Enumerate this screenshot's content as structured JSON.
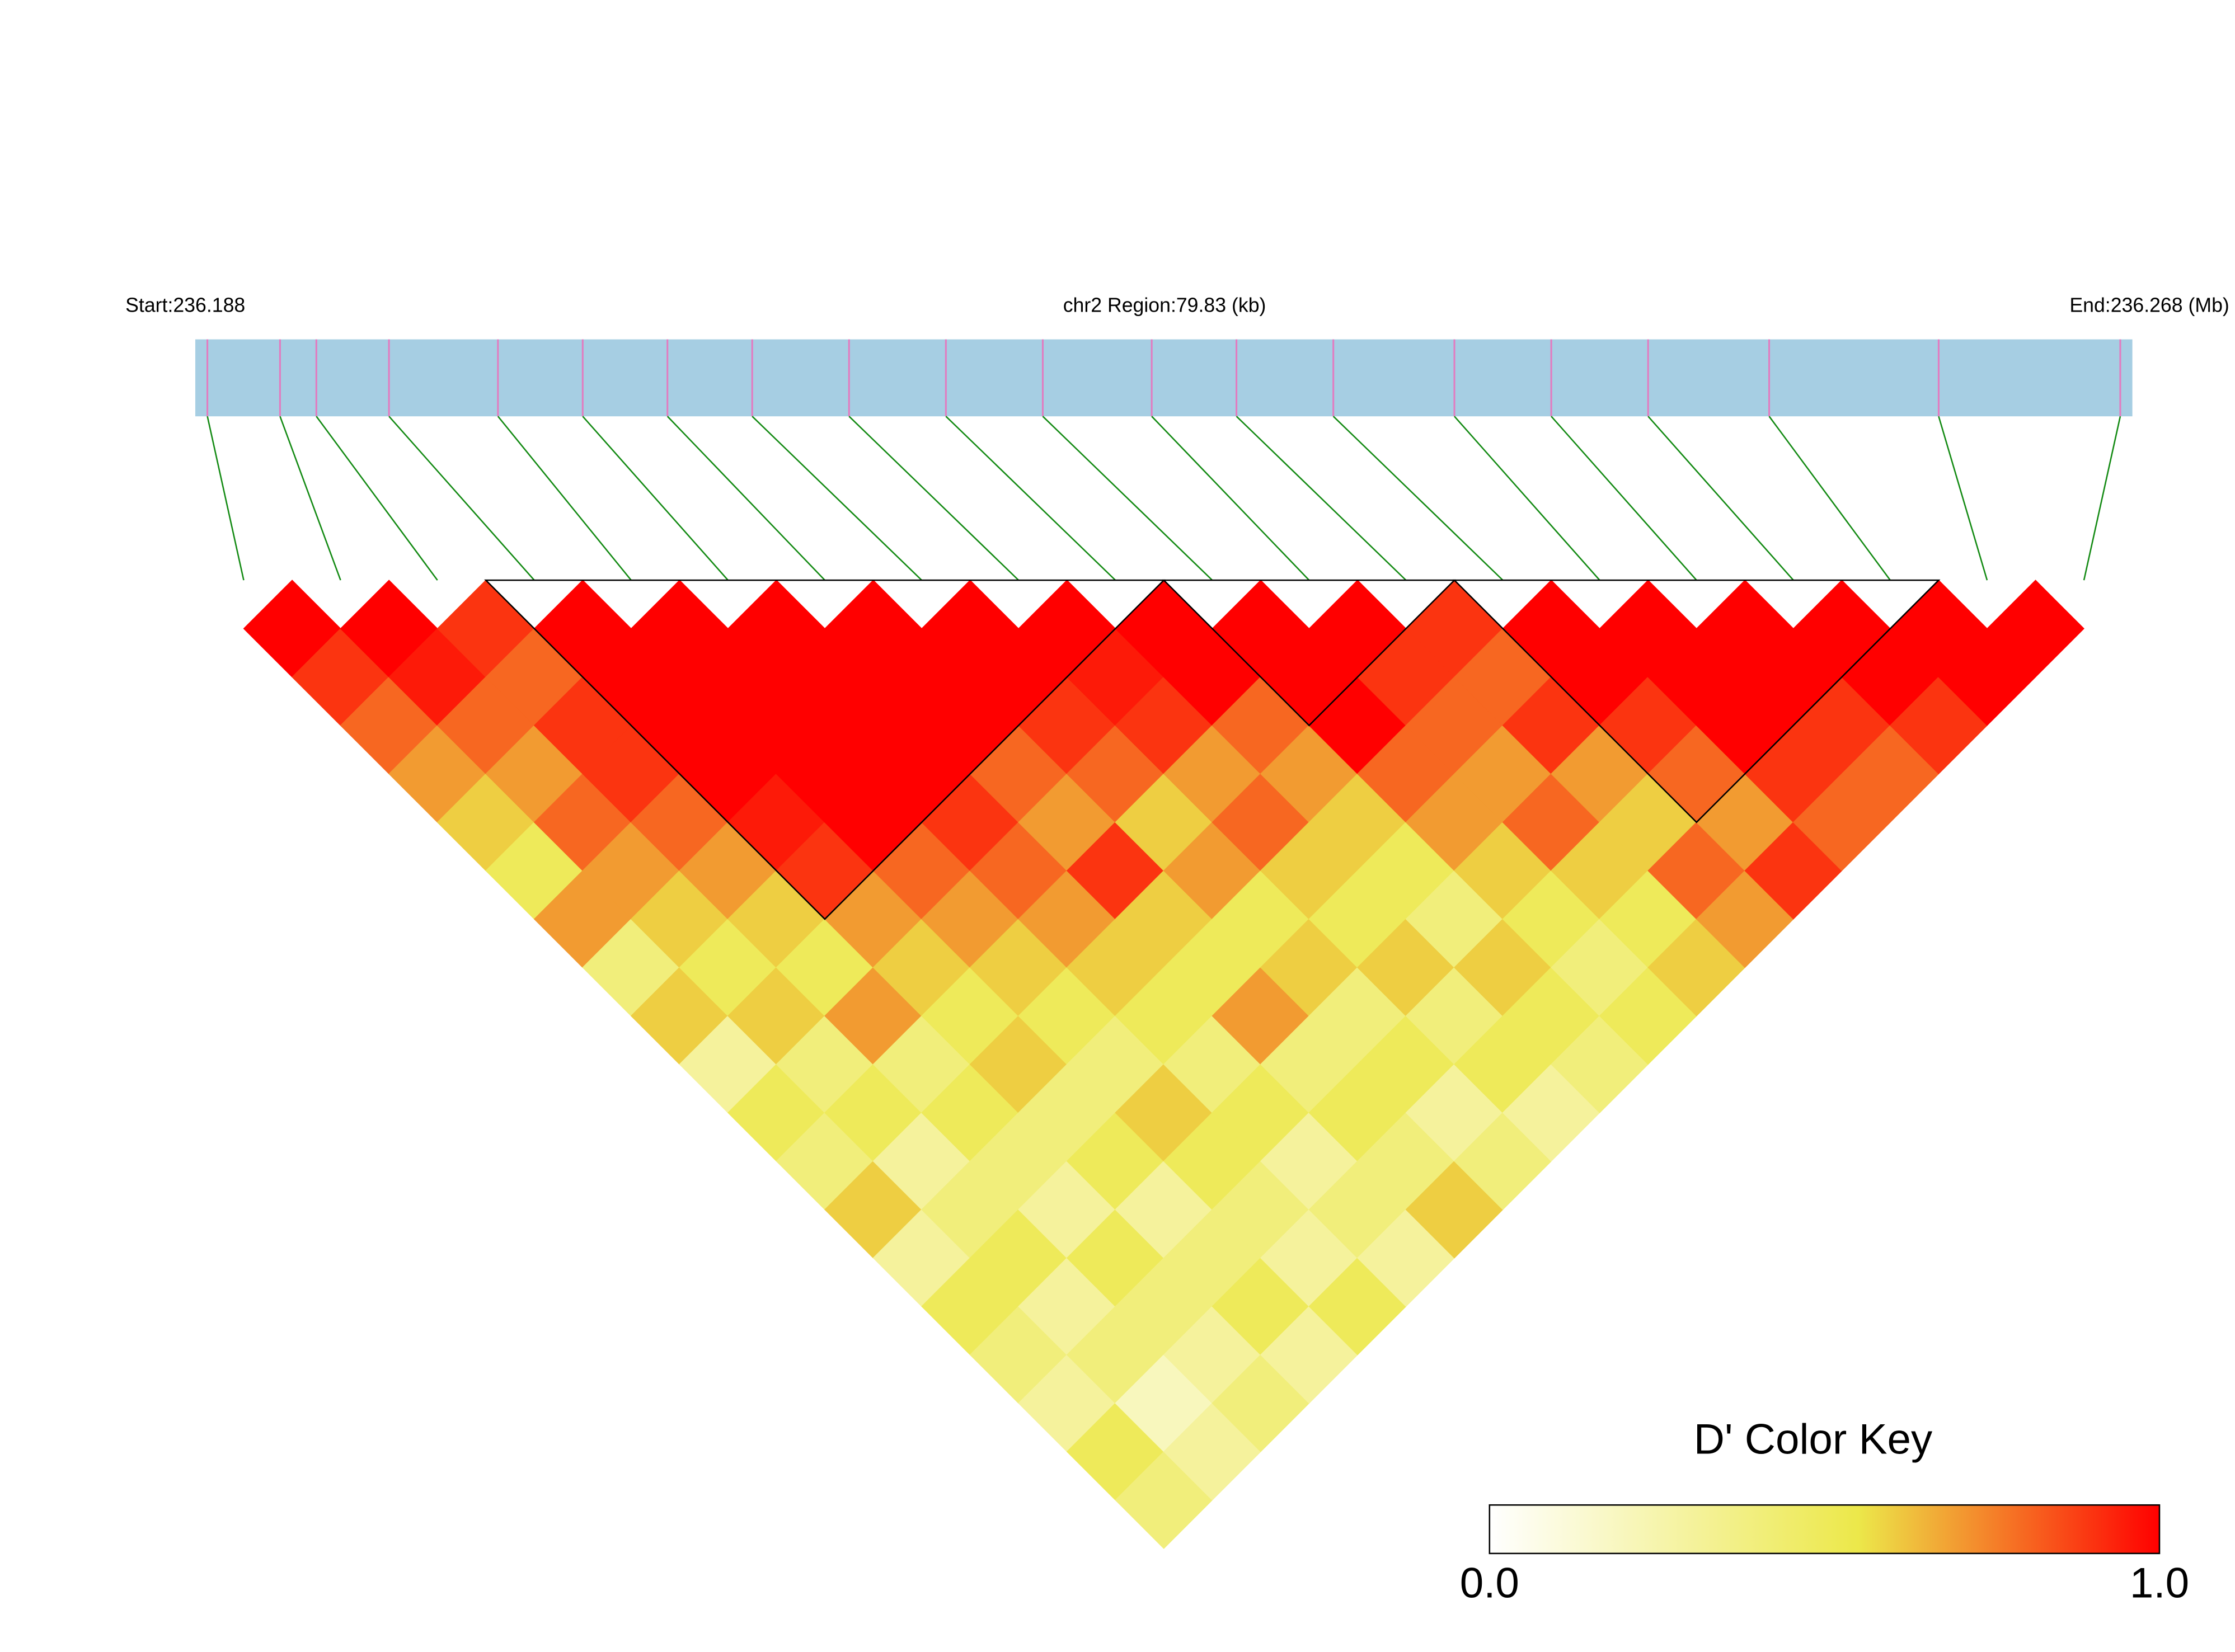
{
  "chart_data": {
    "type": "ld_heatmap",
    "start_label": "Start:236.188",
    "region_label": "chr2 Region:79.83 (kb)",
    "end_label": "End:236.268 (Mb)",
    "xlim": [
      236.188,
      236.268
    ],
    "snp_positions": [
      236.1885,
      236.1915,
      236.193,
      236.196,
      236.2005,
      236.204,
      236.2075,
      236.211,
      236.215,
      236.219,
      236.223,
      236.2275,
      236.231,
      236.235,
      236.24,
      236.244,
      236.248,
      236.253,
      236.26,
      236.2675
    ],
    "dprime": [
      [
        1,
        0.9,
        0.8,
        0.7,
        0.6,
        0.5,
        0.7,
        0.4,
        0.6,
        0.3,
        0.5,
        0.4,
        0.6,
        0.3,
        0.5,
        0.4,
        0.3,
        0.5,
        0.4
      ],
      [
        1,
        0.95,
        0.8,
        0.7,
        0.8,
        0.7,
        0.6,
        0.5,
        0.6,
        0.4,
        0.5,
        0.3,
        0.4,
        0.5,
        0.3,
        0.4,
        0.2,
        0.3
      ],
      [
        0.9,
        0.8,
        0.9,
        0.9,
        0.8,
        0.7,
        0.6,
        0.5,
        0.7,
        0.4,
        0.5,
        0.4,
        0.3,
        0.5,
        0.4,
        0.3,
        0.4
      ],
      [
        1,
        1,
        1,
        1,
        0.95,
        0.9,
        0.7,
        0.6,
        0.5,
        0.6,
        0.4,
        0.5,
        0.3,
        0.4,
        0.5,
        0.3
      ],
      [
        1,
        1,
        1,
        1,
        1,
        0.8,
        0.7,
        0.6,
        0.5,
        0.4,
        0.6,
        0.5,
        0.4,
        0.3,
        0.5
      ],
      [
        1,
        1,
        1,
        1,
        0.9,
        0.8,
        0.7,
        0.6,
        0.5,
        0.4,
        0.5,
        0.3,
        0.4,
        0.3
      ],
      [
        1,
        1,
        1,
        0.8,
        0.7,
        0.9,
        0.6,
        0.5,
        0.7,
        0.4,
        0.5,
        0.4,
        0.6
      ],
      [
        1,
        1,
        0.9,
        0.8,
        0.6,
        0.7,
        0.5,
        0.6,
        0.4,
        0.5,
        0.3,
        0.4
      ],
      [
        1,
        0.95,
        0.9,
        0.7,
        0.8,
        0.6,
        0.5,
        0.6,
        0.4,
        0.5,
        0.3
      ],
      [
        1,
        1,
        0.8,
        0.7,
        0.6,
        0.5,
        0.4,
        0.6,
        0.5,
        0.4
      ],
      [
        1,
        1,
        1,
        0.8,
        0.7,
        0.6,
        0.5,
        0.4,
        0.5
      ],
      [
        1,
        0.9,
        0.8,
        0.7,
        0.8,
        0.6,
        0.5,
        0.6
      ],
      [
        0.9,
        0.8,
        0.9,
        0.7,
        0.6,
        0.8,
        0.7
      ],
      [
        1,
        1,
        0.9,
        0.8,
        0.7,
        0.9
      ],
      [
        1,
        1,
        1,
        0.9,
        0.8
      ],
      [
        1,
        1,
        0.9,
        0.8
      ],
      [
        1,
        1,
        0.9
      ],
      [
        1,
        1
      ],
      [
        1
      ]
    ],
    "blocks": [
      [
        3,
        9
      ],
      [
        10,
        12
      ],
      [
        13,
        17
      ]
    ],
    "bar_color": "#a6cee3",
    "snp_line_color": "#e37bc0",
    "link_color": "#138a13",
    "key_title": "D' Color Key",
    "key_stops": [
      {
        "value": 0,
        "color": "#ffffff"
      },
      {
        "value": 0.55,
        "color": "#ece84a"
      },
      {
        "value": 1,
        "color": "#ff0000"
      }
    ],
    "key_ticks": [
      {
        "value": 0,
        "label": "0.0"
      },
      {
        "value": 1,
        "label": "1.0"
      }
    ]
  }
}
